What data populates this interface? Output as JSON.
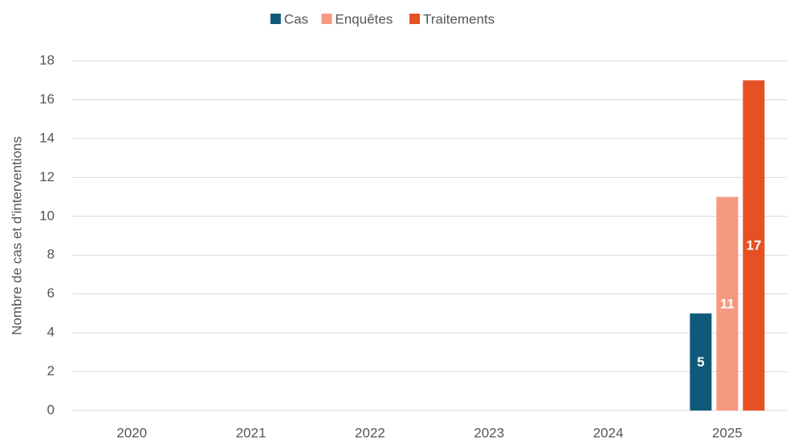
{
  "chart_data": {
    "type": "bar",
    "y_label": "Nombre de cas et d'interventions",
    "categories": [
      "2020",
      "2021",
      "2022",
      "2023",
      "2024",
      "2025"
    ],
    "series": [
      {
        "name": "Cas",
        "color": "#0f5a7b",
        "values": [
          null,
          null,
          null,
          null,
          null,
          5
        ]
      },
      {
        "name": "Enquêtes",
        "color": "#f4997f",
        "values": [
          null,
          null,
          null,
          null,
          null,
          11
        ]
      },
      {
        "name": "Traitements",
        "color": "#e65124",
        "values": [
          null,
          null,
          null,
          null,
          null,
          17
        ]
      }
    ],
    "ylim": [
      0,
      18
    ],
    "yticks": [
      0,
      2,
      4,
      6,
      8,
      10,
      12,
      14,
      16,
      18
    ],
    "grid": true,
    "legend": "top"
  }
}
